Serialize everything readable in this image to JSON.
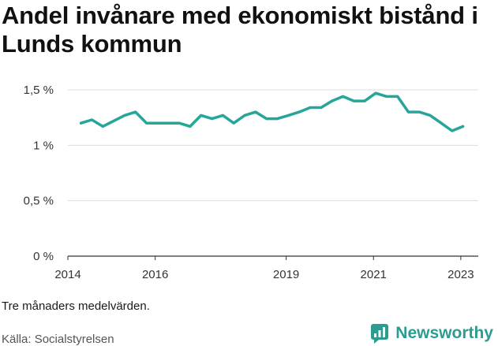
{
  "title": "Andel invånare med ekonomiskt bistånd i Lunds kommun",
  "note": "Tre månaders medelvärden.",
  "source": "Källa: Socialstyrelsen",
  "brand": {
    "name": "Newsworthy",
    "icon": "newsworthy-logo-icon",
    "color": "#2c9c91"
  },
  "chart_data": {
    "type": "line",
    "title": "Andel invånare med ekonomiskt bistånd i Lunds kommun",
    "xlabel": "",
    "ylabel": "",
    "xlim": [
      2014.0,
      2023.4
    ],
    "ylim": [
      0,
      1.5
    ],
    "x_ticks": [
      2014,
      2016,
      2019,
      2021,
      2023
    ],
    "y_ticks": [
      0,
      0.5,
      1,
      1.5
    ],
    "y_tick_labels": [
      "0 %",
      "0,5 %",
      "1 %",
      "1,5 %"
    ],
    "grid": true,
    "color": "#26a69a",
    "series": [
      {
        "x": [
          2014.3,
          2014.55,
          2014.8,
          2015.05,
          2015.3,
          2015.55,
          2015.8,
          2016.05,
          2016.3,
          2016.55,
          2016.8,
          2017.05,
          2017.3,
          2017.55,
          2017.8,
          2018.05,
          2018.3,
          2018.55,
          2018.8,
          2019.05,
          2019.3,
          2019.55,
          2019.8,
          2020.05,
          2020.3,
          2020.55,
          2020.8,
          2021.05,
          2021.3,
          2021.55,
          2021.8,
          2022.05,
          2022.3,
          2022.55,
          2022.8,
          2023.05
        ],
        "y": [
          1.2,
          1.23,
          1.17,
          1.22,
          1.27,
          1.3,
          1.2,
          1.2,
          1.2,
          1.2,
          1.17,
          1.27,
          1.24,
          1.27,
          1.2,
          1.27,
          1.3,
          1.24,
          1.24,
          1.27,
          1.3,
          1.34,
          1.34,
          1.4,
          1.44,
          1.4,
          1.4,
          1.47,
          1.44,
          1.44,
          1.3,
          1.3,
          1.27,
          1.2,
          1.13,
          1.17
        ]
      }
    ]
  }
}
